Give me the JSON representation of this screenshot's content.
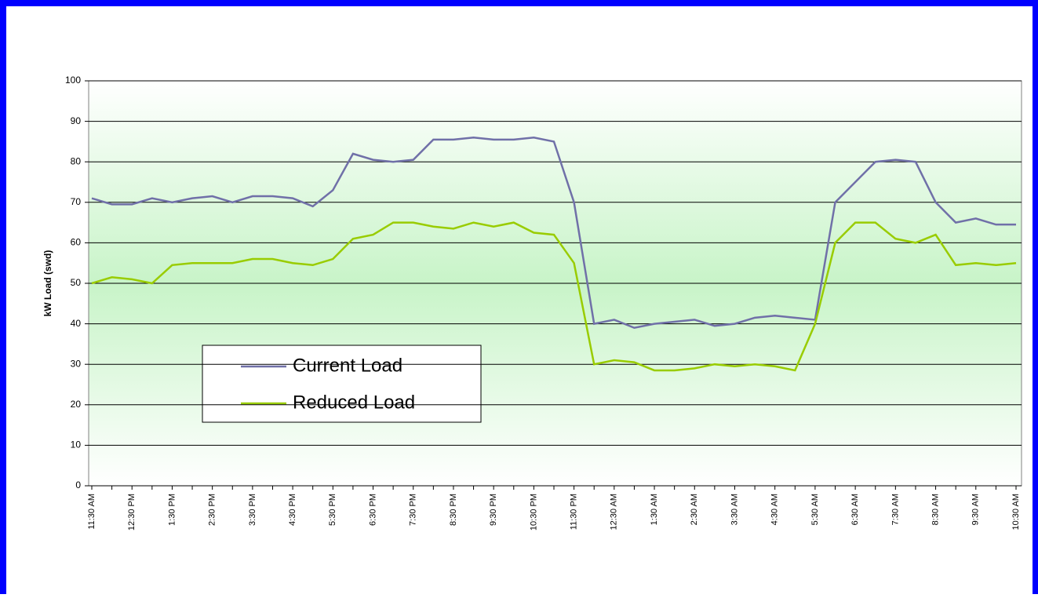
{
  "chart_data": {
    "type": "line",
    "y_label": "kW Load (swd)",
    "categories": [
      "11:30 AM",
      null,
      "12:30 PM",
      null,
      "1:30 PM",
      null,
      "2:30 PM",
      null,
      "3:30 PM",
      null,
      "4:30 PM",
      null,
      "5:30 PM",
      null,
      "6:30 PM",
      null,
      "7:30 PM",
      null,
      "8:30 PM",
      null,
      "9:30 PM",
      null,
      "10:30 PM",
      null,
      "11:30 PM",
      null,
      "12:30 AM",
      null,
      "1:30 AM",
      null,
      "2:30 AM",
      null,
      "3:30 AM",
      null,
      "4:30 AM",
      null,
      "5:30 AM",
      null,
      "6:30 AM",
      null,
      "7:30 AM",
      null,
      "8:30 AM",
      null,
      "9:30 AM",
      null,
      "10:30 AM"
    ],
    "series": [
      {
        "name": "Current Load",
        "color": "#7070a8",
        "values": [
          71,
          69.5,
          69.5,
          71,
          70,
          71,
          71.5,
          70,
          71.5,
          71.5,
          71,
          69,
          73,
          82,
          80.5,
          80,
          80.5,
          85.5,
          85.5,
          86,
          85.5,
          85.5,
          86,
          85,
          70,
          40,
          41,
          39,
          40,
          40.5,
          41,
          39.5,
          40,
          41.5,
          42,
          41.5,
          41,
          70,
          75,
          80,
          80.5,
          80,
          70,
          65,
          66,
          64.5,
          64.5
        ]
      },
      {
        "name": "Reduced Load",
        "color": "#99cc00",
        "values": [
          50,
          51.5,
          51,
          50,
          54.5,
          55,
          55,
          55,
          56,
          56,
          55,
          54.5,
          56,
          61,
          62,
          65,
          65,
          64,
          63.5,
          65,
          64,
          65,
          62.5,
          62,
          55,
          30,
          31,
          30.5,
          28.5,
          28.5,
          29,
          30,
          29.5,
          30,
          29.5,
          28.5,
          40,
          60,
          65,
          65,
          61,
          60,
          62,
          54.5,
          55,
          54.5,
          55
        ]
      }
    ],
    "ylim": [
      0,
      100
    ],
    "yticks": [
      0,
      10,
      20,
      30,
      40,
      50,
      60,
      70,
      80,
      90,
      100
    ],
    "grid": true
  }
}
